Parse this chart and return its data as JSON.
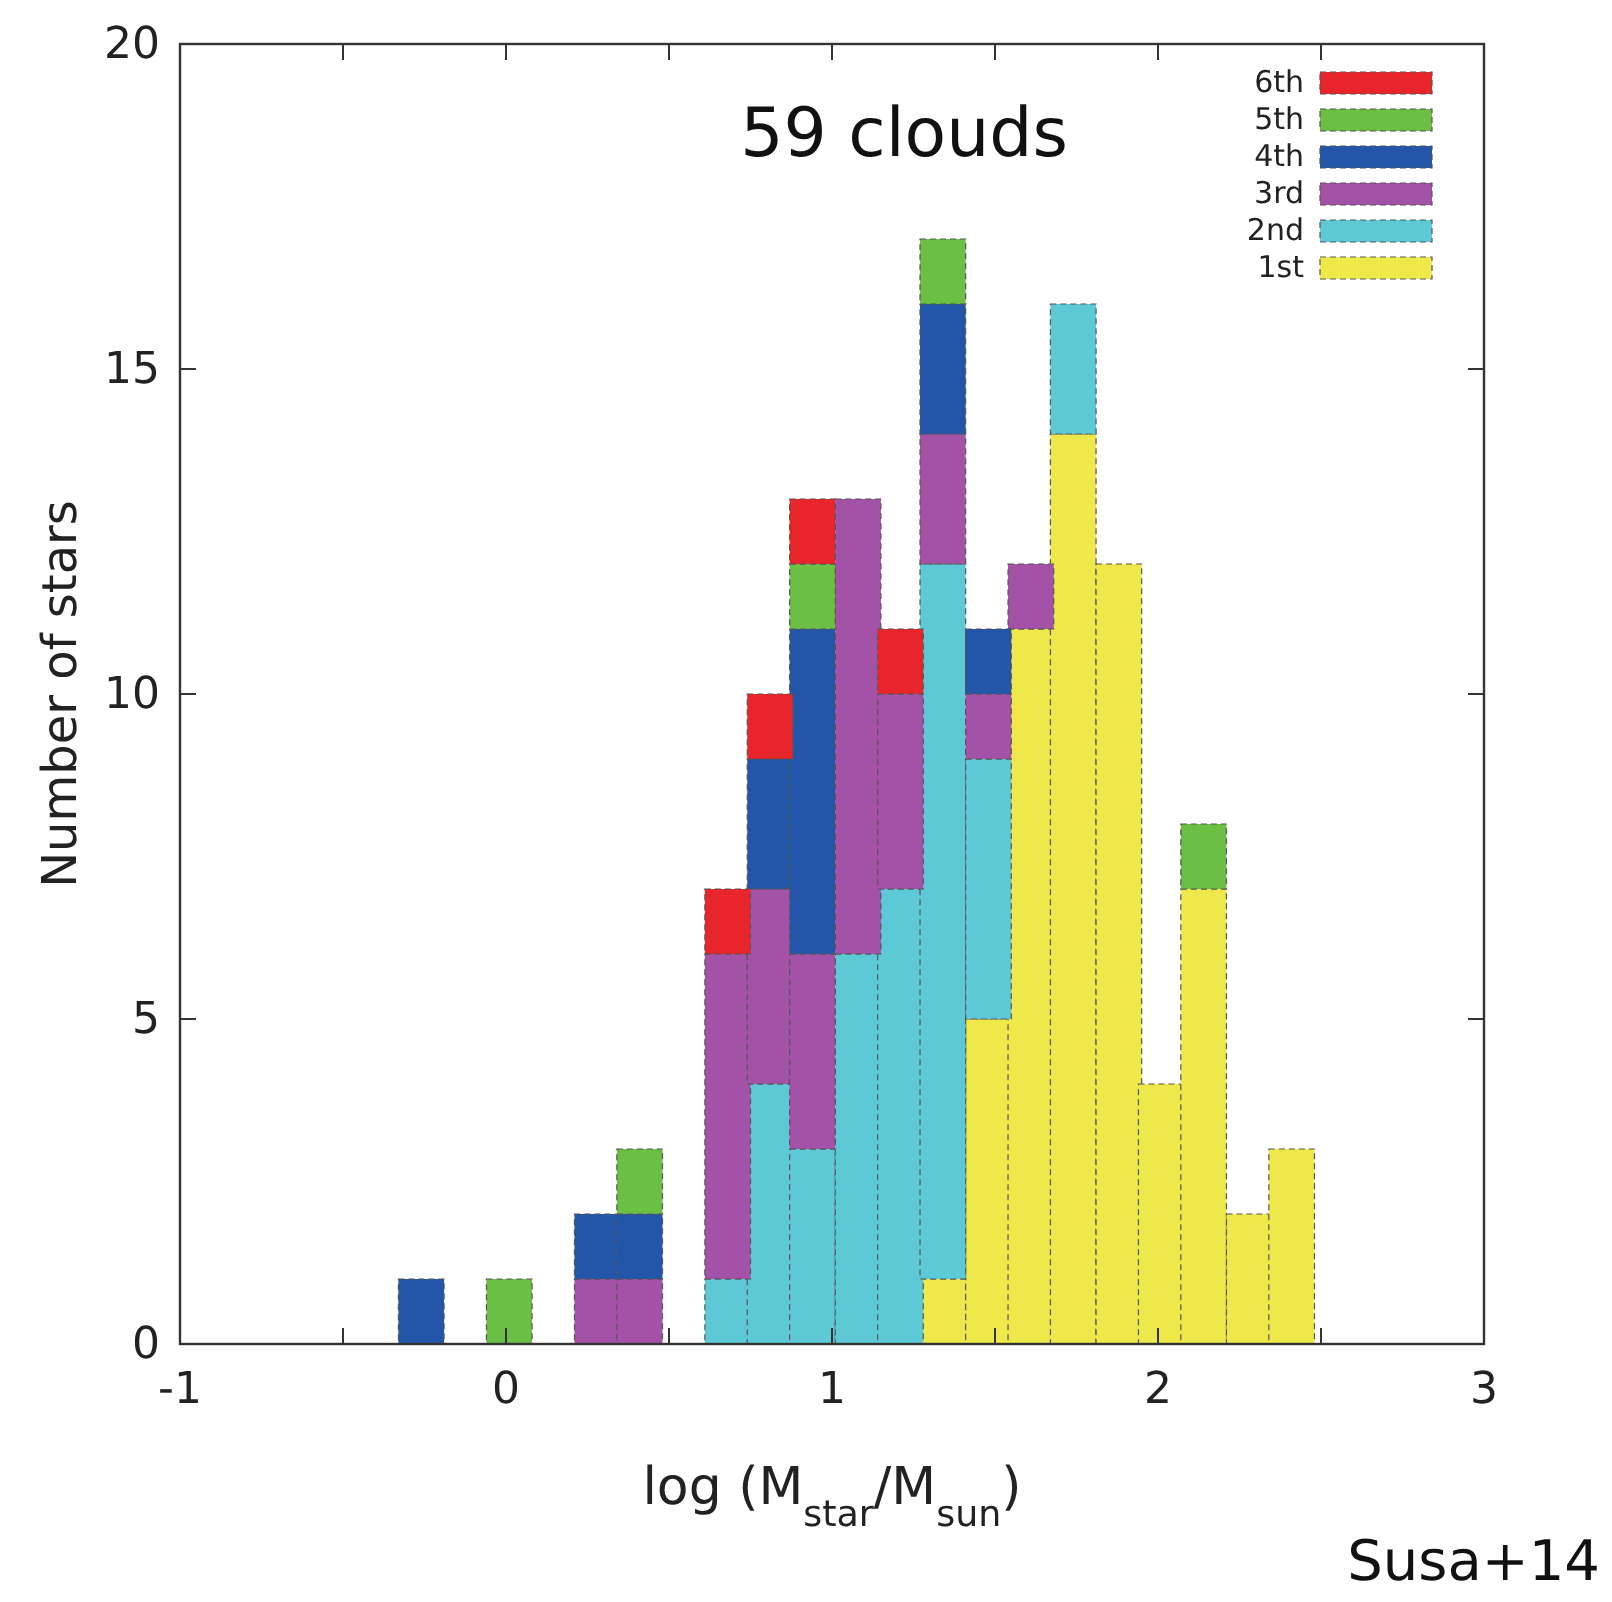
{
  "chart_data": {
    "type": "bar",
    "stacked": true,
    "xlabel": "log (M$_{star}$/M$_{sun}$)",
    "ylabel": "Number of stars",
    "annotations": [
      "59 clouds",
      "Susa+14"
    ],
    "x": [
      -0.26,
      -0.12,
      0.01,
      0.14,
      0.28,
      0.41,
      0.54,
      0.68,
      0.81,
      0.94,
      1.08,
      1.21,
      1.34,
      1.48,
      1.61,
      1.74,
      1.88,
      2.01,
      2.14,
      2.28,
      2.41
    ],
    "series": [
      {
        "name": "1st",
        "color": "#eee84a",
        "values": [
          0,
          0,
          0,
          0,
          0,
          0,
          0,
          0,
          0,
          0,
          0,
          0,
          1,
          5,
          11,
          14,
          12,
          4,
          7,
          2,
          3
        ]
      },
      {
        "name": "2nd",
        "color": "#5ec9d6",
        "values": [
          0,
          0,
          0,
          0,
          0,
          0,
          0,
          1,
          4,
          3,
          6,
          7,
          11,
          4,
          0,
          2,
          0,
          0,
          0,
          0,
          0
        ]
      },
      {
        "name": "3rd",
        "color": "#a352a8",
        "values": [
          0,
          0,
          0,
          0,
          1,
          1,
          0,
          5,
          3,
          3,
          7,
          3,
          2,
          1,
          1,
          0,
          0,
          0,
          0,
          0,
          0
        ]
      },
      {
        "name": "4th",
        "color": "#2356a8",
        "values": [
          1,
          0,
          0,
          0,
          1,
          1,
          0,
          0,
          2,
          5,
          0,
          0,
          2,
          1,
          0,
          0,
          0,
          0,
          0,
          0,
          0
        ]
      },
      {
        "name": "5th",
        "color": "#6cbf45",
        "values": [
          0,
          0,
          1,
          0,
          0,
          1,
          0,
          0,
          0,
          1,
          0,
          0,
          1,
          0,
          0,
          0,
          0,
          0,
          1,
          0,
          0
        ]
      },
      {
        "name": "6th",
        "color": "#e8252a",
        "values": [
          0,
          0,
          0,
          0,
          0,
          0,
          0,
          1,
          1,
          1,
          0,
          1,
          0,
          0,
          0,
          0,
          0,
          0,
          0,
          0,
          0
        ]
      }
    ],
    "xlim": [
      -1,
      3
    ],
    "xticks": [
      -1,
      {
        "value": -0.5,
        "label": null
      },
      0,
      {
        "value": 0.5,
        "label": null
      },
      1,
      {
        "value": 1.5,
        "label": null
      },
      2,
      {
        "value": 2.5,
        "label": null
      },
      3
    ],
    "ylim": [
      0,
      20
    ],
    "yticks": [
      0,
      5,
      10,
      15,
      20
    ],
    "grid": false,
    "legend": "top right"
  }
}
